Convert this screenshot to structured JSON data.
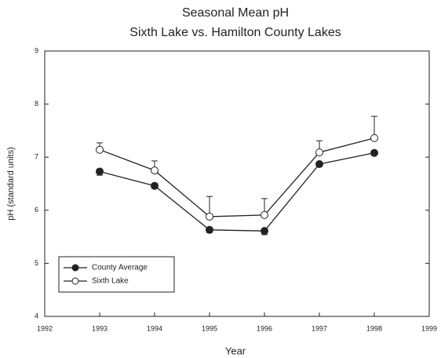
{
  "chart_data": {
    "type": "line",
    "title": "Seasonal Mean pH",
    "subtitle": "Sixth Lake vs. Hamilton County Lakes",
    "x_label": "Year",
    "y_label": "pH (standard units)",
    "x": [
      1993,
      1994,
      1995,
      1996,
      1997,
      1998
    ],
    "series": [
      {
        "name": "County Average",
        "color": "#222222",
        "marker": "filled",
        "error_direction": "down",
        "values": [
          6.73,
          6.46,
          5.63,
          5.61,
          6.87,
          7.08
        ],
        "errors": [
          0.07,
          0.05,
          0.05,
          0.07,
          0.04,
          0.04
        ]
      },
      {
        "name": "Sixth Lake",
        "color": "#222222",
        "marker": "open",
        "error_direction": "up",
        "values": [
          7.14,
          6.75,
          5.88,
          5.91,
          7.09,
          7.36
        ],
        "errors": [
          0.13,
          0.18,
          0.38,
          0.31,
          0.22,
          0.41
        ]
      }
    ],
    "xlim": [
      1992,
      1999
    ],
    "xticks": [
      1992,
      1993,
      1994,
      1995,
      1996,
      1997,
      1998,
      1999
    ],
    "ylim": [
      4,
      9
    ],
    "yticks": [
      4,
      5,
      6,
      7,
      8,
      9
    ],
    "grid": false,
    "legend": "lower left"
  }
}
